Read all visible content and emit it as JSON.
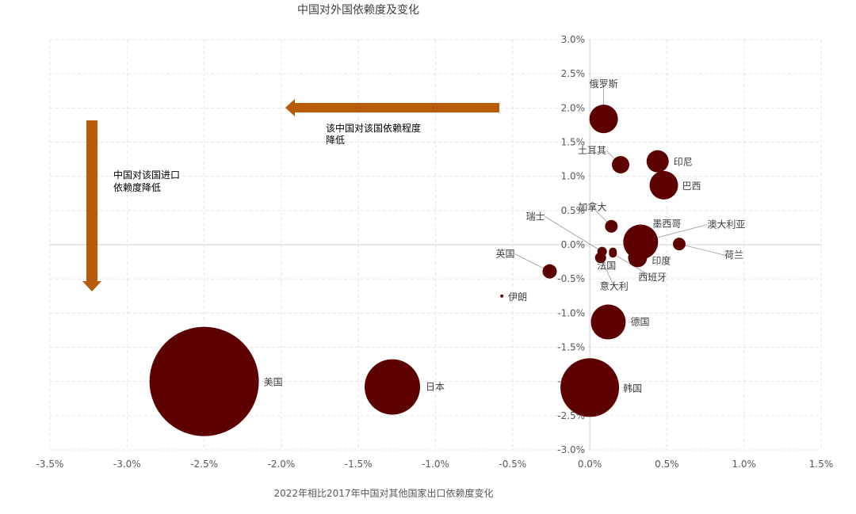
{
  "chart_data": {
    "type": "scatter",
    "title": "中国对外国依赖度及变化",
    "xlabel": "2022年相比2017年中国对其他国家出口依赖度变化",
    "ylabel": "",
    "xlim": [
      -0.035,
      0.015
    ],
    "ylim": [
      -0.03,
      0.03
    ],
    "x_ticks": [
      "-3.5%",
      "-3.0%",
      "-2.5%",
      "-2.0%",
      "-1.5%",
      "-1.0%",
      "-0.5%",
      "0.0%",
      "0.5%",
      "1.0%",
      "1.5%"
    ],
    "y_ticks": [
      "3.0%",
      "2.5%",
      "2.0%",
      "1.5%",
      "1.0%",
      "0.5%",
      "0.0%",
      "-0.5%",
      "-1.0%",
      "-1.5%",
      "-2.0%",
      "-2.5%",
      "-3.0%"
    ],
    "grid": true,
    "bubble_color": "#5c0000",
    "arrow_color": "#b85c0a",
    "points": [
      {
        "label": "美国",
        "x": -0.025,
        "y": -0.02
      },
      {
        "label": "日本",
        "x": -0.0128,
        "y": -0.0208
      },
      {
        "label": "韩国",
        "x": 0.0,
        "y": -0.0209
      },
      {
        "label": "德国",
        "x": 0.0012,
        "y": -0.0113
      },
      {
        "label": "俄罗斯",
        "x": 0.0009,
        "y": 0.0184
      },
      {
        "label": "土耳其",
        "x": 0.002,
        "y": 0.0117
      },
      {
        "label": "印尼",
        "x": 0.0044,
        "y": 0.0122
      },
      {
        "label": "巴西",
        "x": 0.0048,
        "y": 0.0087
      },
      {
        "label": "加拿大",
        "x": 0.0014,
        "y": 0.0027
      },
      {
        "label": "墨西哥",
        "x": 0.0032,
        "y": 0.0003
      },
      {
        "label": "澳大利亚",
        "x": 0.0033,
        "y": 0.0004
      },
      {
        "label": "荷兰",
        "x": 0.0058,
        "y": 0.0001
      },
      {
        "label": "瑞士",
        "x": 0.0008,
        "y": -0.001
      },
      {
        "label": "法国",
        "x": 0.0015,
        "y": -0.001
      },
      {
        "label": "印度",
        "x": 0.0031,
        "y": -0.0019
      },
      {
        "label": "西班牙",
        "x": 0.0015,
        "y": -0.0013
      },
      {
        "label": "意大利",
        "x": 0.0007,
        "y": -0.0019
      },
      {
        "label": "英国",
        "x": -0.0026,
        "y": -0.0039
      },
      {
        "label": "伊朗",
        "x": -0.0057,
        "y": -0.0075
      }
    ],
    "annotations": [
      {
        "text_lines": [
          "该中国对该国依赖程度",
          "降低"
        ]
      },
      {
        "text_lines": [
          "中国对该国进口",
          "依赖度降低"
        ]
      }
    ]
  }
}
